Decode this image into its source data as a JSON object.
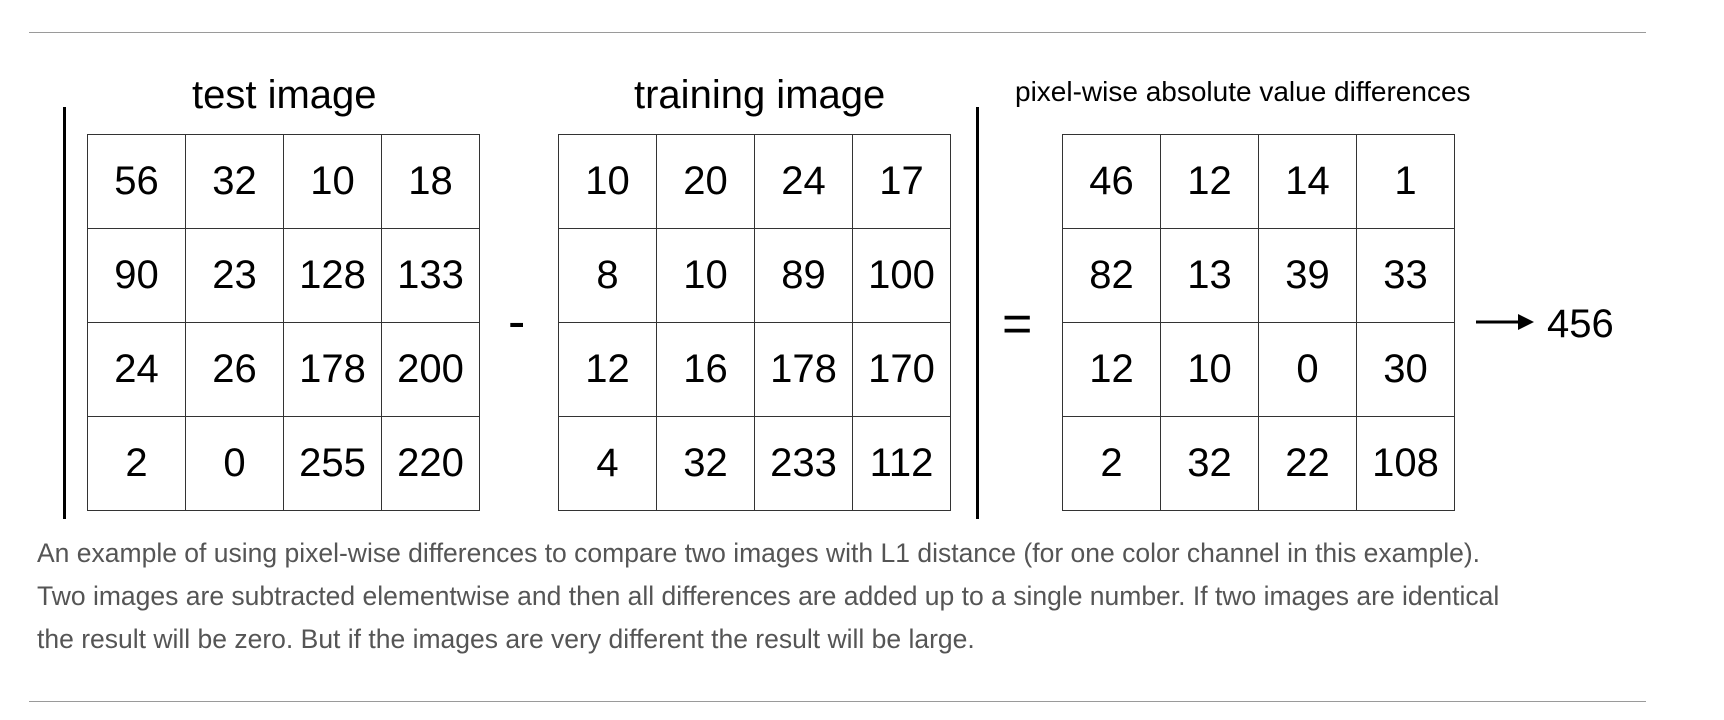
{
  "diagram": {
    "test_label": "test image",
    "training_label": "training image",
    "diff_label": "pixel-wise absolute value differences",
    "minus_op": "-",
    "equals_op": "=",
    "result": "456",
    "test_matrix": [
      [
        56,
        32,
        10,
        18
      ],
      [
        90,
        23,
        128,
        133
      ],
      [
        24,
        26,
        178,
        200
      ],
      [
        2,
        0,
        255,
        220
      ]
    ],
    "training_matrix": [
      [
        10,
        20,
        24,
        17
      ],
      [
        8,
        10,
        89,
        100
      ],
      [
        12,
        16,
        178,
        170
      ],
      [
        4,
        32,
        233,
        112
      ]
    ],
    "diff_matrix": [
      [
        46,
        12,
        14,
        1
      ],
      [
        82,
        13,
        39,
        33
      ],
      [
        12,
        10,
        0,
        30
      ],
      [
        2,
        32,
        22,
        108
      ]
    ]
  },
  "caption": {
    "line1": "An example of using pixel-wise differences to compare two images with L1 distance (for one color channel in this example).",
    "line2": "Two images are subtracted elementwise and then all differences are added up to a single number. If two images are identical",
    "line3": "the result will be zero. But if the images are very different the result will be large."
  }
}
